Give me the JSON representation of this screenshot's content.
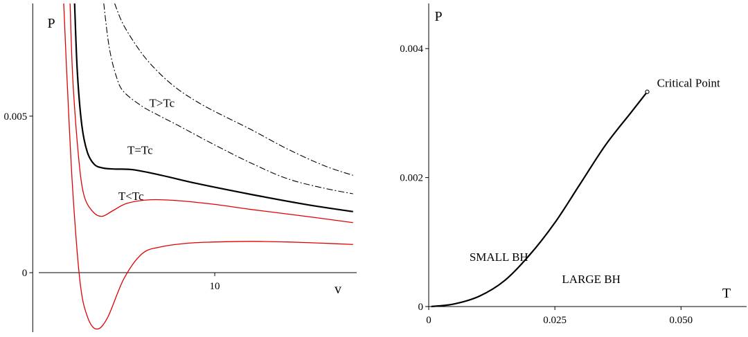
{
  "chart_data": [
    {
      "type": "line",
      "title": "",
      "xlabel": "v",
      "ylabel": "P",
      "xticks": [
        {
          "value": 10,
          "label": "10"
        }
      ],
      "yticks": [
        {
          "value": 0,
          "label": "0"
        },
        {
          "value": 0.005,
          "label": "0.005"
        }
      ],
      "xlim": [
        -1.8,
        17.8
      ],
      "ylim": [
        -0.0019,
        0.0086
      ],
      "annotations": [
        {
          "text": "T>Tc",
          "x": 7.1,
          "y": 0.00543
        },
        {
          "text": "T=Tc",
          "x": 5.9,
          "y": 0.00393
        },
        {
          "text": "T<Tc",
          "x": 5.4,
          "y": 0.00246
        }
      ],
      "series": [
        {
          "style": "dashdot",
          "color": "#000000",
          "x": [
            4.5,
            5,
            6,
            7,
            8,
            9,
            10,
            12,
            14,
            16,
            17.6
          ],
          "y": [
            0.0086,
            0.0079,
            0.007,
            0.00635,
            0.00585,
            0.00547,
            0.00515,
            0.00457,
            0.00395,
            0.00342,
            0.00311
          ]
        },
        {
          "style": "dashdot",
          "color": "#000000",
          "x": [
            3.9,
            4.2,
            4.6,
            5,
            6,
            7,
            8,
            10,
            12,
            14,
            16,
            17.6
          ],
          "y": [
            0.0086,
            0.0072,
            0.00625,
            0.00578,
            0.00532,
            0.005,
            0.0047,
            0.00408,
            0.0035,
            0.003,
            0.0027,
            0.00252
          ]
        },
        {
          "style": "solid-bold",
          "color": "#000000",
          "x": [
            2.3,
            2.45,
            2.7,
            3,
            3.4,
            3.9,
            4.5,
            5.5,
            7,
            9,
            12,
            15,
            17.6
          ],
          "y": [
            0.0086,
            0.0064,
            0.0047,
            0.00385,
            0.00345,
            0.00334,
            0.00331,
            0.00329,
            0.00312,
            0.00285,
            0.0025,
            0.00218,
            0.00195
          ]
        },
        {
          "style": "solid",
          "color": "#e00000",
          "x": [
            2.05,
            2.2,
            2.5,
            2.8,
            3.3,
            3.8,
            4.4,
            5.2,
            6.5,
            8,
            10,
            12,
            15,
            17.6
          ],
          "y": [
            0.0086,
            0.0062,
            0.0038,
            0.0025,
            0.00195,
            0.0018,
            0.00198,
            0.00222,
            0.00233,
            0.0023,
            0.00218,
            0.00202,
            0.0018,
            0.0016
          ]
        },
        {
          "style": "solid",
          "color": "#e00000",
          "x": [
            1.7,
            1.9,
            2.2,
            2.6,
            3.0,
            3.5,
            4.1,
            5,
            6,
            7,
            8.5,
            10,
            12,
            14,
            16,
            17.6
          ],
          "y": [
            0.0086,
            0.006,
            0.0026,
            -0.0003,
            -0.0014,
            -0.0018,
            -0.00145,
            -0.0002,
            0.0006,
            0.00082,
            0.00094,
            0.00098,
            0.001,
            0.00098,
            0.00094,
            0.0009
          ]
        }
      ]
    },
    {
      "type": "line",
      "title": "",
      "xlabel": "T",
      "ylabel": "P",
      "xticks": [
        {
          "value": 0,
          "label": "0"
        },
        {
          "value": 0.025,
          "label": "0.025"
        },
        {
          "value": 0.05,
          "label": "0.050"
        }
      ],
      "yticks": [
        {
          "value": 0,
          "label": "0"
        },
        {
          "value": 0.002,
          "label": "0.002"
        },
        {
          "value": 0.004,
          "label": "0.004"
        }
      ],
      "xlim": [
        0,
        0.063
      ],
      "ylim": [
        0,
        0.0047
      ],
      "annotations": [
        {
          "text": "Critical Point",
          "x": 0.0515,
          "y": 0.00347
        },
        {
          "text": "SMALL BH",
          "x": 0.0139,
          "y": 0.00077
        },
        {
          "text": "LARGE BH",
          "x": 0.0322,
          "y": 0.00043
        }
      ],
      "critical_point": {
        "x": 0.0433,
        "y": 0.00333
      },
      "series": [
        {
          "style": "solid-bold",
          "color": "#000000",
          "x": [
            0.0005,
            0.005,
            0.01,
            0.015,
            0.02,
            0.025,
            0.03,
            0.035,
            0.04,
            0.0433
          ],
          "y": [
            0.0,
            4e-05,
            0.00016,
            0.0004,
            0.0008,
            0.0013,
            0.0019,
            0.0025,
            0.003,
            0.00333
          ]
        }
      ]
    }
  ]
}
